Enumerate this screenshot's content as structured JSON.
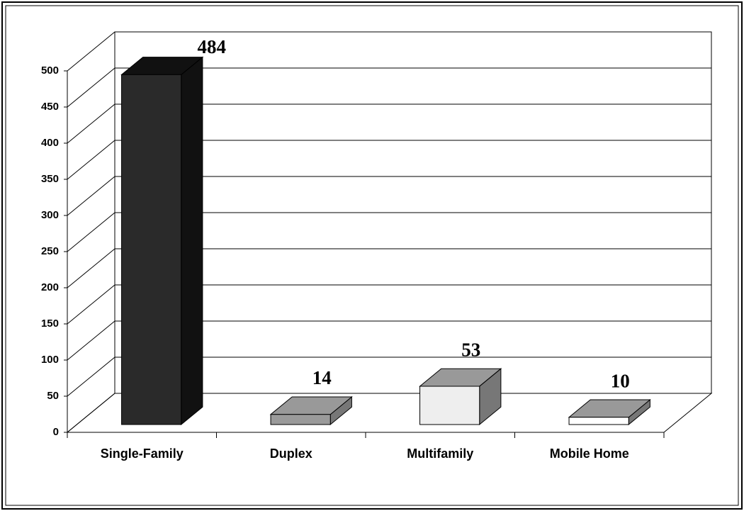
{
  "chart_data": {
    "type": "bar3d",
    "categories": [
      "Single-Family",
      "Duplex",
      "Multifamily",
      "Mobile Home"
    ],
    "values": [
      484,
      14,
      53,
      10
    ],
    "colors": [
      "#2a2a2a",
      "#9a9a9a",
      "#eeeeee",
      "#ffffff"
    ],
    "ylim": [
      0,
      500
    ],
    "yticks": [
      0,
      50,
      100,
      150,
      200,
      250,
      300,
      350,
      400,
      450,
      500
    ],
    "grid": true
  }
}
